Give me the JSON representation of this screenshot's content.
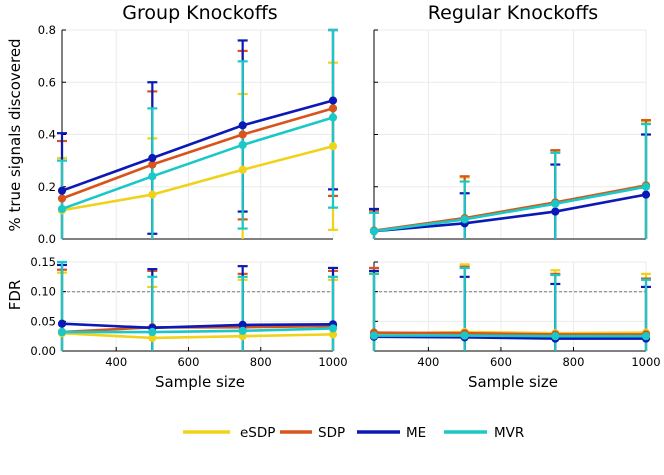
{
  "colors": {
    "eSDP": "#f0d21b",
    "SDP": "#d9541c",
    "ME": "#0b19b5",
    "MVR": "#19c9c8",
    "threshold": "#999999"
  },
  "legend": [
    "eSDP",
    "SDP",
    "ME",
    "MVR"
  ],
  "chart_data": [
    {
      "type": "line",
      "panel": "top-left",
      "title": "Group Knockoffs",
      "xlabel": "",
      "ylabel": "% true signals discovered",
      "x": [
        250,
        500,
        750,
        1000
      ],
      "xlim": [
        250,
        1000
      ],
      "ylim": [
        0,
        0.8
      ],
      "yticks": [
        0.0,
        0.2,
        0.4,
        0.6,
        0.8
      ],
      "ytick_labels": [
        "0.0",
        "0.2",
        "0.4",
        "0.6",
        "0.8"
      ],
      "series": [
        {
          "name": "eSDP",
          "values": [
            0.11,
            0.17,
            0.265,
            0.355
          ],
          "lower": [
            0.0,
            0.0,
            0.0,
            0.035
          ],
          "upper": [
            0.31,
            0.385,
            0.555,
            0.675
          ]
        },
        {
          "name": "SDP",
          "values": [
            0.155,
            0.285,
            0.4,
            0.5
          ],
          "lower": [
            0.0,
            0.0,
            0.075,
            0.165
          ],
          "upper": [
            0.375,
            0.565,
            0.72,
            0.8
          ]
        },
        {
          "name": "ME",
          "values": [
            0.185,
            0.31,
            0.435,
            0.53
          ],
          "lower": [
            0.0,
            0.02,
            0.105,
            0.19
          ],
          "upper": [
            0.405,
            0.6,
            0.76,
            0.8
          ]
        },
        {
          "name": "MVR",
          "values": [
            0.115,
            0.24,
            0.36,
            0.465
          ],
          "lower": [
            0.0,
            0.0,
            0.04,
            0.12
          ],
          "upper": [
            0.3,
            0.5,
            0.68,
            0.8
          ]
        }
      ]
    },
    {
      "type": "line",
      "panel": "top-right",
      "title": "Regular Knockoffs",
      "xlabel": "",
      "ylabel": "",
      "x": [
        250,
        500,
        750,
        1000
      ],
      "xlim": [
        250,
        1000
      ],
      "ylim": [
        0,
        0.8
      ],
      "yticks": [
        0.0,
        0.2,
        0.4,
        0.6,
        0.8
      ],
      "ytick_labels": [],
      "series": [
        {
          "name": "eSDP",
          "values": [
            0.03,
            0.08,
            0.14,
            0.205
          ],
          "lower": [
            0.0,
            0.0,
            0.0,
            0.0
          ],
          "upper": [
            0.105,
            0.235,
            0.335,
            0.45
          ]
        },
        {
          "name": "SDP",
          "values": [
            0.032,
            0.08,
            0.14,
            0.205
          ],
          "lower": [
            0.0,
            0.0,
            0.0,
            0.0
          ],
          "upper": [
            0.11,
            0.24,
            0.34,
            0.455
          ]
        },
        {
          "name": "ME",
          "values": [
            0.03,
            0.06,
            0.105,
            0.17
          ],
          "lower": [
            0.0,
            0.0,
            0.0,
            0.0
          ],
          "upper": [
            0.115,
            0.175,
            0.285,
            0.4
          ]
        },
        {
          "name": "MVR",
          "values": [
            0.03,
            0.075,
            0.135,
            0.2
          ],
          "lower": [
            0.0,
            0.0,
            0.0,
            0.0
          ],
          "upper": [
            0.1,
            0.22,
            0.33,
            0.44
          ]
        }
      ]
    },
    {
      "type": "line",
      "panel": "bottom-left",
      "title": "",
      "xlabel": "Sample size",
      "ylabel": "FDR",
      "x": [
        250,
        500,
        750,
        1000
      ],
      "xlim": [
        250,
        1000
      ],
      "ylim": [
        0,
        0.15
      ],
      "yticks": [
        0.0,
        0.05,
        0.1,
        0.15
      ],
      "ytick_labels": [
        "0.00",
        "0.05",
        "0.10",
        "0.15"
      ],
      "xticks": [
        400,
        600,
        800,
        1000
      ],
      "xtick_labels": [
        "400",
        "600",
        "800",
        "1000"
      ],
      "threshold": 0.1,
      "series": [
        {
          "name": "eSDP",
          "values": [
            0.03,
            0.022,
            0.025,
            0.028
          ],
          "lower": [
            0.0,
            0.0,
            0.0,
            0.0
          ],
          "upper": [
            0.132,
            0.108,
            0.12,
            0.12
          ]
        },
        {
          "name": "SDP",
          "values": [
            0.032,
            0.04,
            0.04,
            0.042
          ],
          "lower": [
            0.0,
            0.0,
            0.0,
            0.0
          ],
          "upper": [
            0.137,
            0.135,
            0.13,
            0.135
          ]
        },
        {
          "name": "ME",
          "values": [
            0.046,
            0.039,
            0.044,
            0.045
          ],
          "lower": [
            0.0,
            0.0,
            0.0,
            0.0
          ],
          "upper": [
            0.145,
            0.138,
            0.143,
            0.14
          ]
        },
        {
          "name": "MVR",
          "values": [
            0.032,
            0.032,
            0.034,
            0.038
          ],
          "lower": [
            0.0,
            0.0,
            0.0,
            0.0
          ],
          "upper": [
            0.15,
            0.125,
            0.125,
            0.125
          ]
        }
      ]
    },
    {
      "type": "line",
      "panel": "bottom-right",
      "title": "",
      "xlabel": "Sample size",
      "ylabel": "",
      "x": [
        250,
        500,
        750,
        1000
      ],
      "xlim": [
        250,
        1000
      ],
      "ylim": [
        0,
        0.15
      ],
      "yticks": [
        0.0,
        0.05,
        0.1,
        0.15
      ],
      "ytick_labels": [],
      "xticks": [
        400,
        600,
        800,
        1000
      ],
      "xtick_labels": [
        "400",
        "600",
        "800",
        "1000"
      ],
      "threshold": 0.1,
      "series": [
        {
          "name": "eSDP",
          "values": [
            0.029,
            0.032,
            0.03,
            0.031
          ],
          "lower": [
            0.0,
            0.0,
            0.0,
            0.0
          ],
          "upper": [
            0.133,
            0.146,
            0.136,
            0.13
          ]
        },
        {
          "name": "SDP",
          "values": [
            0.031,
            0.03,
            0.028,
            0.028
          ],
          "lower": [
            0.0,
            0.0,
            0.0,
            0.0
          ],
          "upper": [
            0.14,
            0.142,
            0.13,
            0.122
          ]
        },
        {
          "name": "ME",
          "values": [
            0.024,
            0.023,
            0.021,
            0.021
          ],
          "lower": [
            0.0,
            0.0,
            0.0,
            0.0
          ],
          "upper": [
            0.135,
            0.125,
            0.113,
            0.108
          ]
        },
        {
          "name": "MVR",
          "values": [
            0.026,
            0.026,
            0.025,
            0.025
          ],
          "lower": [
            0.0,
            0.0,
            0.0,
            0.0
          ],
          "upper": [
            0.13,
            0.14,
            0.128,
            0.12
          ]
        }
      ]
    }
  ]
}
